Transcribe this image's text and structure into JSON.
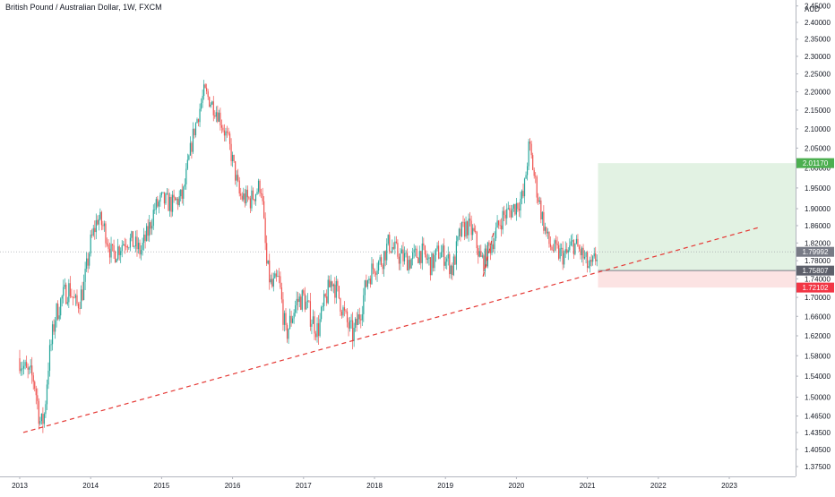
{
  "header": {
    "title": "British Pound / Australian Dollar, 1W, FXCM",
    "currency": "AUD"
  },
  "chart_data": {
    "type": "candlestick",
    "title": "British Pound / Australian Dollar, 1W, FXCM",
    "xlabel": "",
    "ylabel": "",
    "xlim": [
      2013.0,
      2024.0
    ],
    "ylim": [
      1.343,
      2.45
    ],
    "x_ticks": [
      "2013",
      "2014",
      "2015",
      "2016",
      "2017",
      "2018",
      "2019",
      "2020",
      "2021",
      "2022",
      "2023"
    ],
    "y_ticks": [
      "1.37500",
      "1.40500",
      "1.43500",
      "1.46500",
      "1.50000",
      "1.54000",
      "1.58000",
      "1.62000",
      "1.66000",
      "1.70000",
      "1.74000",
      "1.78000",
      "1.82000",
      "1.86000",
      "1.90000",
      "1.95000",
      "2.00000",
      "2.05000",
      "2.10000",
      "2.15000",
      "2.20000",
      "2.25000",
      "2.30000",
      "2.35000",
      "2.40000",
      "2.45000"
    ],
    "ohlc_path": [
      [
        2013.0,
        1.575
      ],
      [
        2013.1,
        1.545
      ],
      [
        2013.2,
        1.535
      ],
      [
        2013.25,
        1.49
      ],
      [
        2013.3,
        1.445
      ],
      [
        2013.35,
        1.47
      ],
      [
        2013.4,
        1.56
      ],
      [
        2013.5,
        1.66
      ],
      [
        2013.6,
        1.7
      ],
      [
        2013.7,
        1.72
      ],
      [
        2013.8,
        1.68
      ],
      [
        2013.9,
        1.72
      ],
      [
        2014.0,
        1.82
      ],
      [
        2014.1,
        1.88
      ],
      [
        2014.2,
        1.85
      ],
      [
        2014.3,
        1.79
      ],
      [
        2014.4,
        1.81
      ],
      [
        2014.5,
        1.83
      ],
      [
        2014.6,
        1.82
      ],
      [
        2014.7,
        1.8
      ],
      [
        2014.8,
        1.84
      ],
      [
        2014.9,
        1.9
      ],
      [
        2015.0,
        1.92
      ],
      [
        2015.15,
        1.91
      ],
      [
        2015.3,
        1.93
      ],
      [
        2015.45,
        2.09
      ],
      [
        2015.6,
        2.2
      ],
      [
        2015.7,
        2.17
      ],
      [
        2015.8,
        2.14
      ],
      [
        2015.95,
        2.06
      ],
      [
        2016.1,
        1.93
      ],
      [
        2016.25,
        1.92
      ],
      [
        2016.4,
        1.96
      ],
      [
        2016.48,
        1.77
      ],
      [
        2016.55,
        1.72
      ],
      [
        2016.65,
        1.74
      ],
      [
        2016.75,
        1.62
      ],
      [
        2016.9,
        1.69
      ],
      [
        2017.0,
        1.7
      ],
      [
        2017.1,
        1.66
      ],
      [
        2017.2,
        1.63
      ],
      [
        2017.3,
        1.69
      ],
      [
        2017.4,
        1.74
      ],
      [
        2017.5,
        1.7
      ],
      [
        2017.6,
        1.65
      ],
      [
        2017.7,
        1.62
      ],
      [
        2017.8,
        1.67
      ],
      [
        2017.9,
        1.74
      ],
      [
        2018.0,
        1.77
      ],
      [
        2018.1,
        1.78
      ],
      [
        2018.2,
        1.82
      ],
      [
        2018.35,
        1.79
      ],
      [
        2018.5,
        1.78
      ],
      [
        2018.65,
        1.8
      ],
      [
        2018.8,
        1.77
      ],
      [
        2018.9,
        1.8
      ],
      [
        2019.0,
        1.79
      ],
      [
        2019.1,
        1.76
      ],
      [
        2019.2,
        1.84
      ],
      [
        2019.3,
        1.86
      ],
      [
        2019.4,
        1.84
      ],
      [
        2019.5,
        1.78
      ],
      [
        2019.55,
        1.78
      ],
      [
        2019.65,
        1.82
      ],
      [
        2019.8,
        1.88
      ],
      [
        2019.95,
        1.9
      ],
      [
        2020.1,
        1.93
      ],
      [
        2020.18,
        2.06
      ],
      [
        2020.25,
        1.98
      ],
      [
        2020.35,
        1.89
      ],
      [
        2020.45,
        1.82
      ],
      [
        2020.55,
        1.8
      ],
      [
        2020.7,
        1.79
      ],
      [
        2020.8,
        1.82
      ],
      [
        2020.9,
        1.8
      ],
      [
        2021.0,
        1.77
      ],
      [
        2021.05,
        1.76
      ],
      [
        2021.15,
        1.8
      ]
    ],
    "series": [
      {
        "name": "",
        "type": "dashed-trendline",
        "color": "#e53935",
        "points": [
          [
            2013.05,
            1.435
          ],
          [
            2023.4,
            1.855
          ]
        ]
      },
      {
        "name": "",
        "type": "dashed-trendline",
        "color": "#e53935",
        "points": [
          [
            2019.53,
            1.745
          ],
          [
            2019.68,
            1.845
          ]
        ]
      },
      {
        "name": "",
        "type": "long-position-target-zone",
        "color": "#4caf50",
        "x_range": [
          2021.15,
          2024.0
        ],
        "y_range": [
          1.75807,
          2.0117
        ]
      },
      {
        "name": "",
        "type": "long-position-stop-zone",
        "color": "#ef5350",
        "x_range": [
          2021.15,
          2024.0
        ],
        "y_range": [
          1.72102,
          1.75807
        ]
      }
    ],
    "price_labels": [
      {
        "value": 2.0117,
        "label": "2.01170",
        "color": "#4caf50"
      },
      {
        "value": 1.79992,
        "label": "1.79992",
        "color": "#787b86"
      },
      {
        "value": 1.75807,
        "label": "1.75807",
        "color": "#5d606b"
      },
      {
        "value": 1.72102,
        "label": "1.72102",
        "color": "#f23645"
      }
    ],
    "colors": {
      "up": "#26a69a",
      "down": "#ef5350",
      "axis_text": "#131722",
      "axis_line": "#b2b5be",
      "last_price_line": "#9598a1"
    },
    "grid": false,
    "legend": "none"
  }
}
